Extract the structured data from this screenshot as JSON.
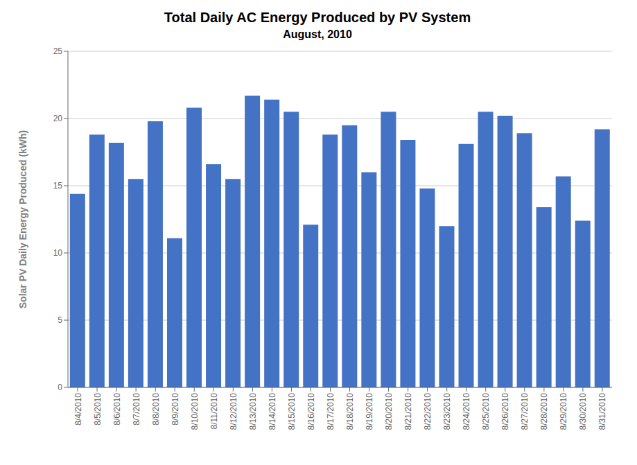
{
  "chart_data": {
    "type": "bar",
    "title": "Total Daily AC Energy Produced by PV System",
    "subtitle": "August, 2010",
    "ylabel": "Solar PV Daily Energy Produced (kWh)",
    "categories": [
      "8/4/2010",
      "8/5/2010",
      "8/6/2010",
      "8/7/2010",
      "8/8/2010",
      "8/9/2010",
      "8/10/2010",
      "8/11/2010",
      "8/12/2010",
      "8/13/2010",
      "8/14/2010",
      "8/15/2010",
      "8/16/2010",
      "8/17/2010",
      "8/18/2010",
      "8/19/2010",
      "8/20/2010",
      "8/21/2010",
      "8/22/2010",
      "8/23/2010",
      "8/24/2010",
      "8/25/2010",
      "8/26/2010",
      "8/27/2010",
      "8/28/2010",
      "8/29/2010",
      "8/30/2010",
      "8/31/2010"
    ],
    "values": [
      14.4,
      18.8,
      18.2,
      15.5,
      19.8,
      11.1,
      20.8,
      16.6,
      15.5,
      21.7,
      21.4,
      20.5,
      12.1,
      18.8,
      19.5,
      16.0,
      20.5,
      18.4,
      14.8,
      12.0,
      18.1,
      20.5,
      20.2,
      18.9,
      13.4,
      15.7,
      12.4,
      19.2
    ],
    "color": "#4472C4",
    "ylim": [
      0,
      25
    ],
    "yticks": [
      0,
      5,
      10,
      15,
      20,
      25
    ],
    "grid": true
  }
}
